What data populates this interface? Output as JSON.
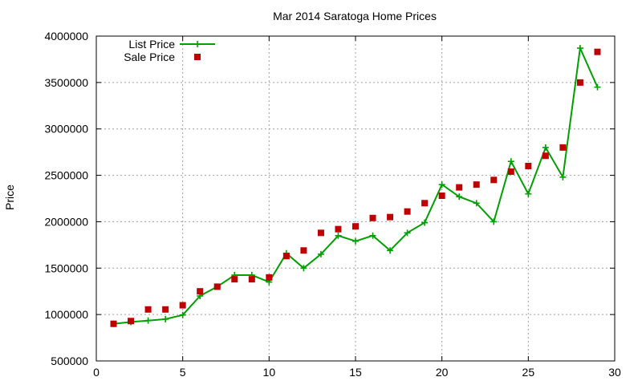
{
  "chart_data": {
    "type": "line",
    "title": "Mar 2014 Saratoga Home Prices",
    "xlabel": "",
    "ylabel": "Price",
    "xlim": [
      0,
      30
    ],
    "ylim": [
      500000,
      4000000
    ],
    "x_ticks": [
      0,
      5,
      10,
      15,
      20,
      25,
      30
    ],
    "y_ticks": [
      500000,
      1000000,
      1500000,
      2000000,
      2500000,
      3000000,
      3500000,
      4000000
    ],
    "grid": true,
    "legend_position": "top-left",
    "x": [
      1,
      2,
      3,
      4,
      5,
      6,
      7,
      8,
      9,
      10,
      11,
      12,
      13,
      14,
      15,
      16,
      17,
      18,
      19,
      20,
      21,
      22,
      23,
      24,
      25,
      26,
      27,
      28,
      29
    ],
    "series": [
      {
        "name": "List Price",
        "style": "lines+crosses",
        "color": "#00a000",
        "values": [
          900000,
          920000,
          935000,
          950000,
          995000,
          1200000,
          1300000,
          1425000,
          1425000,
          1350000,
          1660000,
          1500000,
          1650000,
          1850000,
          1790000,
          1850000,
          1690000,
          1880000,
          1990000,
          2400000,
          2270000,
          2200000,
          2000000,
          2650000,
          2300000,
          2800000,
          2480000,
          3870000,
          3450000
        ]
      },
      {
        "name": "Sale Price",
        "style": "squares",
        "color": "#c00000",
        "values": [
          900000,
          930000,
          1055000,
          1055000,
          1100000,
          1250000,
          1300000,
          1380000,
          1380000,
          1400000,
          1630000,
          1690000,
          1880000,
          1920000,
          1950000,
          2040000,
          2050000,
          2110000,
          2200000,
          2280000,
          2370000,
          2400000,
          2450000,
          2540000,
          2600000,
          2710000,
          2800000,
          3500000,
          3830000
        ]
      }
    ]
  }
}
